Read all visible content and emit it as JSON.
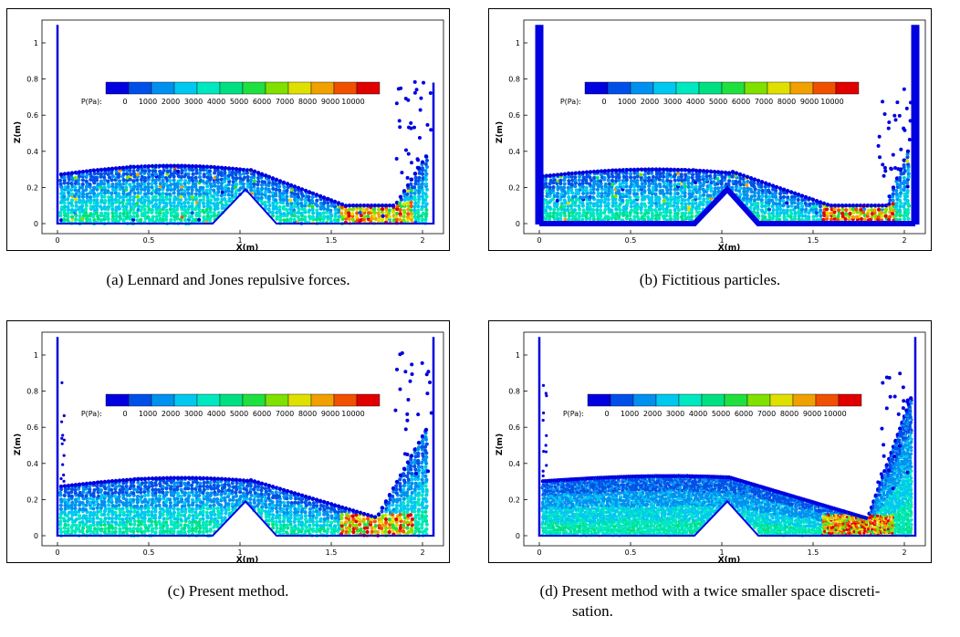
{
  "figure": {
    "colorbar": {
      "label": "P(Pa):",
      "ticks": [
        "0",
        "1000",
        "2000",
        "3000",
        "4000",
        "5000",
        "6000",
        "7000",
        "8000",
        "9000",
        "10000"
      ],
      "colors": [
        "#0000e0",
        "#0050e8",
        "#0090f0",
        "#00c8f0",
        "#00e8c0",
        "#00e080",
        "#20e040",
        "#80e000",
        "#e0e000",
        "#f0a000",
        "#f05000",
        "#e00000"
      ]
    },
    "axes": {
      "xlabel": "X(m)",
      "ylabel": "Z(m)",
      "xticks": [
        "0",
        "0.5",
        "1",
        "1.5",
        "2"
      ],
      "yticks": [
        "0",
        "0.2",
        "0.4",
        "0.6",
        "0.8",
        "1"
      ]
    },
    "panels": [
      {
        "caption": "(a)  Lennard and Jones repulsive forces."
      },
      {
        "caption": "(b)  Fictitious particles."
      },
      {
        "caption": "(c)  Present method."
      },
      {
        "caption": "(d)  Present method with a twice smaller space discreti-",
        "caption2": "sation."
      }
    ]
  },
  "chart_data": [
    {
      "type": "scatter",
      "title": "",
      "xlabel": "X(m)",
      "ylabel": "Z(m)",
      "xlim": [
        -0.08,
        2.12
      ],
      "ylim": [
        -0.08,
        1.1
      ],
      "legend": "P(Pa) colorbar, top"
    },
    {
      "type": "scatter",
      "title": "",
      "xlabel": "X(m)",
      "ylabel": "Z(m)",
      "xlim": [
        -0.08,
        2.12
      ],
      "ylim": [
        -0.08,
        1.1
      ],
      "legend": "P(Pa) colorbar, top"
    },
    {
      "type": "scatter",
      "title": "",
      "xlabel": "X(m)",
      "ylabel": "Z(m)",
      "xlim": [
        -0.08,
        2.12
      ],
      "ylim": [
        -0.08,
        1.1
      ],
      "legend": "P(Pa) colorbar, top"
    },
    {
      "type": "scatter",
      "title": "",
      "xlabel": "X(m)",
      "ylabel": "Z(m)",
      "xlim": [
        -0.08,
        2.12
      ],
      "ylim": [
        -0.08,
        1.1
      ],
      "legend": "P(Pa) colorbar, top"
    }
  ]
}
